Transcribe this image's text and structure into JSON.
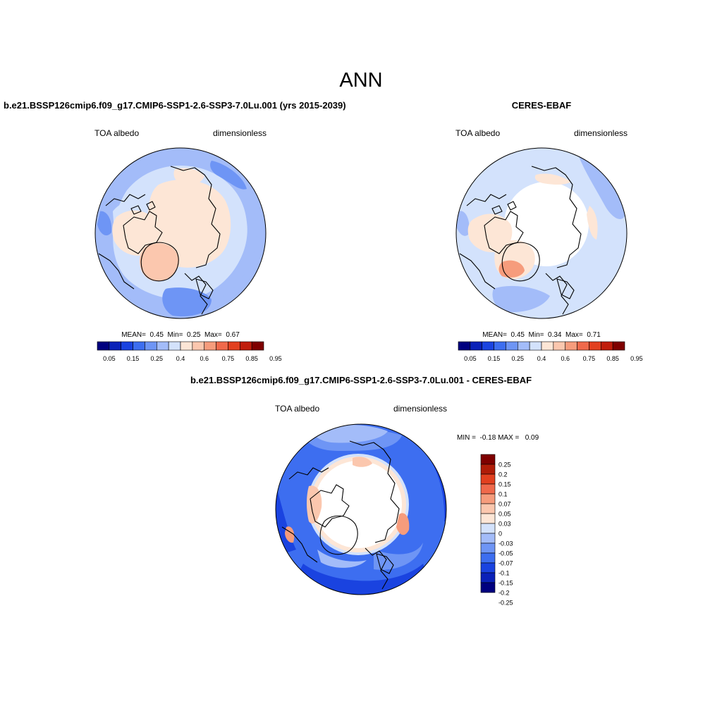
{
  "figure": {
    "title": "ANN",
    "diff_title": "b.e21.BSSP126cmip6.f09_g17.CMIP6-SSP1-2.6-SSP3-7.0Lu.001 - CERES-EBAF"
  },
  "panels": [
    {
      "title": "b.e21.BSSP126cmip6.f09_g17.CMIP6-SSP1-2.6-SSP3-7.0Lu.001 (yrs 2015-2039)",
      "variable": "TOA albedo",
      "units": "dimensionless",
      "stats": "MEAN=  0.45  Min=  0.25  Max=  0.67"
    },
    {
      "title": "CERES-EBAF",
      "variable": "TOA albedo",
      "units": "dimensionless",
      "stats": "MEAN=  0.45  Min=  0.34  Max=  0.71"
    },
    {
      "title": "",
      "variable": "TOA albedo",
      "units": "dimensionless",
      "stats": "MIN =  -0.18 MAX =   0.09"
    }
  ],
  "colorbars": {
    "abs": {
      "labels": [
        "0.05",
        "0.15",
        "0.25",
        "0.4",
        "0.6",
        "0.75",
        "0.85",
        "0.95"
      ],
      "colors": [
        "#00007f",
        "#0a21b8",
        "#1a43e0",
        "#3d6ef0",
        "#6e95f5",
        "#a3bcf9",
        "#d3e2fc",
        "#fde6d6",
        "#fbc7ae",
        "#f69c7c",
        "#f0694b",
        "#e2401f",
        "#c01d0c",
        "#7f0000"
      ]
    },
    "diff": {
      "labels": [
        "0.25",
        "0.2",
        "0.15",
        "0.1",
        "0.07",
        "0.05",
        "0.03",
        "0",
        "-0.03",
        "-0.05",
        "-0.07",
        "-0.1",
        "-0.15",
        "-0.2",
        "-0.25"
      ],
      "colors": [
        "#7f0000",
        "#b01c08",
        "#e2401f",
        "#f0694b",
        "#f69c7c",
        "#fbc7ae",
        "#fde6d6",
        "#d3e2fc",
        "#a3bcf9",
        "#6e95f5",
        "#3d6ef0",
        "#1a43e0",
        "#0a21b8",
        "#00007f"
      ]
    }
  },
  "map_fill_colors": {
    "pale_blue": "#d3e2fc",
    "light_blue": "#a3bcf9",
    "mid_blue": "#6e95f5",
    "blue": "#3d6ef0",
    "deep_blue": "#1a43e0",
    "cream": "#fde6d6",
    "peach": "#fbc7ae",
    "salmon": "#f69c7c",
    "missing": "#ffffff"
  }
}
